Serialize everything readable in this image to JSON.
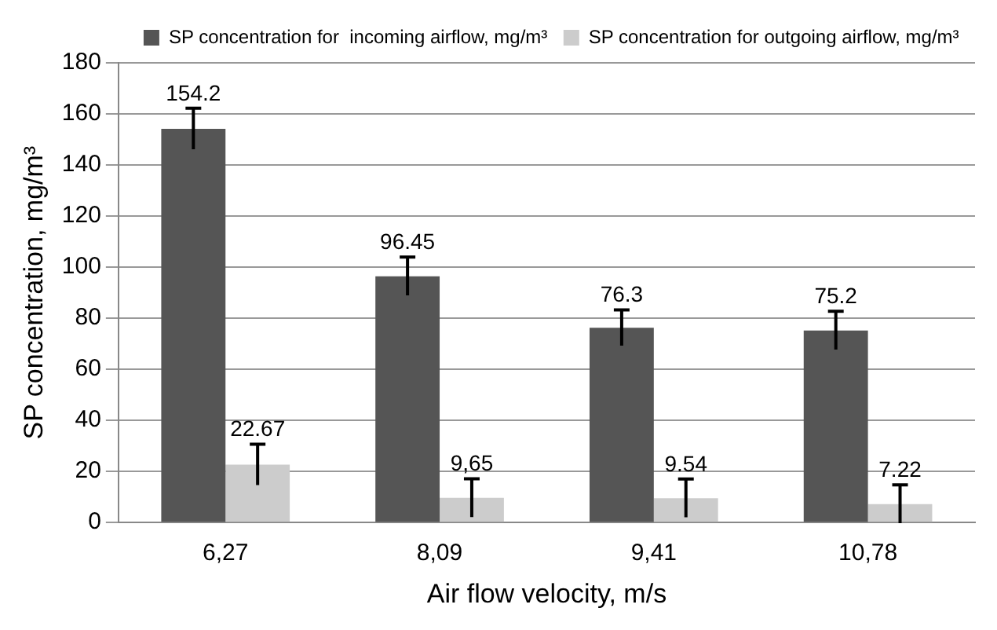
{
  "chart_data": {
    "type": "bar",
    "xlabel": "Air flow velocity, m/s",
    "ylabel": "SP concentration, mg/m³",
    "categories": [
      "6,27",
      "8,09",
      "9,41",
      "10,78"
    ],
    "series": [
      {
        "name": "SP concentration for  incoming airflow, mg/m³",
        "color": "#555555",
        "values": [
          154.2,
          96.45,
          76.3,
          75.2
        ],
        "errors": [
          8,
          7.5,
          7,
          7.5
        ],
        "value_labels": [
          "154.2",
          "96.45",
          "76.3",
          "75.2"
        ]
      },
      {
        "name": "SP concentration for outgoing airflow, mg/m³",
        "color": "#cccccc",
        "values": [
          22.67,
          9.65,
          9.54,
          7.22
        ],
        "errors": [
          8,
          7.5,
          7.5,
          7.5
        ],
        "value_labels": [
          "22.67",
          "9,65",
          "9.54",
          "7.22"
        ]
      }
    ],
    "ylim": [
      0,
      180
    ],
    "yticks": [
      0,
      20,
      40,
      60,
      80,
      100,
      120,
      140,
      160,
      180
    ],
    "grid": "y",
    "legend": "top right"
  }
}
